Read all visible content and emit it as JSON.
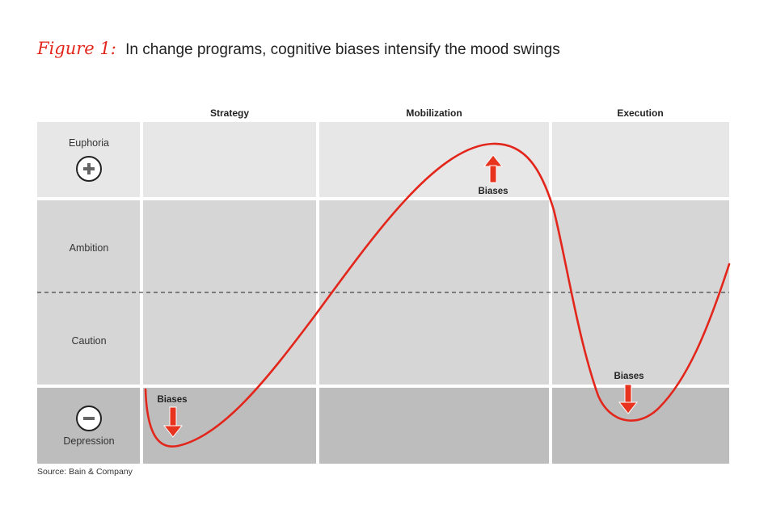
{
  "figure": {
    "prefix": "Figure 1:",
    "title": "In change programs, cognitive biases intensify the mood swings"
  },
  "phases": [
    "Strategy",
    "Mobilization",
    "Execution"
  ],
  "moods": [
    "Euphoria",
    "Ambition",
    "Caution",
    "Depression"
  ],
  "bias_label": "Biases",
  "source": "Source: Bain & Company",
  "colors": {
    "curve": "#e3261b",
    "arrow": "#e8331f",
    "euphoria_band": "#e7e7e7",
    "middle_band": "#d6d6d6",
    "depression_band": "#bdbdbd"
  },
  "icons": {
    "plus": "plus-circle-icon",
    "minus": "minus-circle-icon"
  }
}
